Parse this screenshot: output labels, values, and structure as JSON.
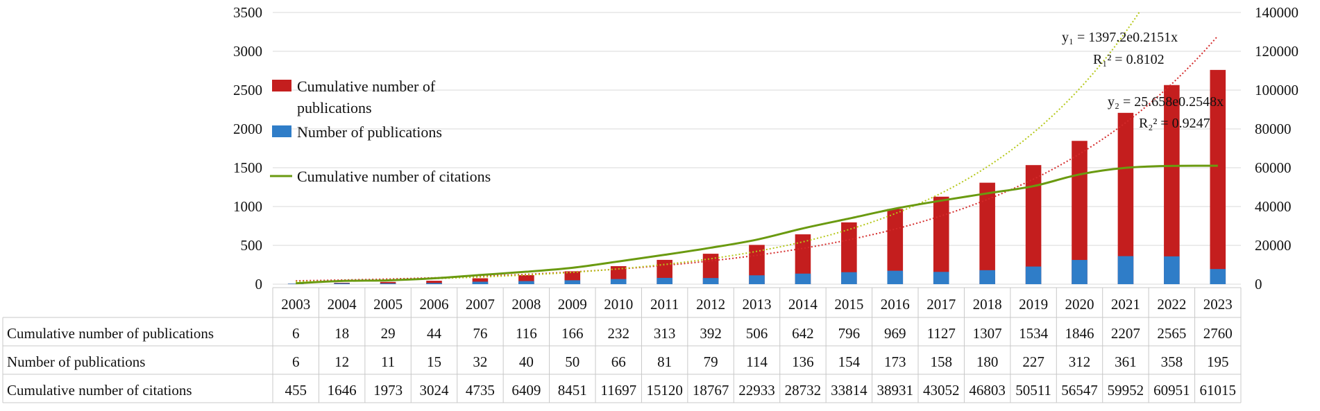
{
  "chart_data": {
    "type": "bar",
    "categories": [
      "2003",
      "2004",
      "2005",
      "2006",
      "2007",
      "2008",
      "2009",
      "2010",
      "2011",
      "2012",
      "2013",
      "2014",
      "2015",
      "2016",
      "2017",
      "2018",
      "2019",
      "2020",
      "2021",
      "2022",
      "2023"
    ],
    "series": [
      {
        "name": "Cumulative number of publications",
        "axis": "left",
        "kind": "bar",
        "color": "#c41e1e",
        "values": [
          6,
          18,
          29,
          44,
          76,
          116,
          166,
          232,
          313,
          392,
          506,
          642,
          796,
          969,
          1127,
          1307,
          1534,
          1846,
          2207,
          2565,
          2760
        ]
      },
      {
        "name": "Number of  publications",
        "axis": "left",
        "kind": "bar",
        "color": "#2f7dc8",
        "values": [
          6,
          12,
          11,
          15,
          32,
          40,
          50,
          66,
          81,
          79,
          114,
          136,
          154,
          173,
          158,
          180,
          227,
          312,
          361,
          358,
          195
        ]
      },
      {
        "name": "Cumulative number of citations",
        "axis": "right",
        "kind": "line",
        "color": "#6a9a10",
        "values": [
          455,
          1646,
          1973,
          3024,
          4735,
          6409,
          8451,
          11697,
          15120,
          18767,
          22933,
          28732,
          33814,
          38931,
          43052,
          46803,
          50511,
          56547,
          59952,
          60951,
          61015
        ]
      }
    ],
    "left_axis": {
      "min": 0,
      "max": 3500,
      "ticks": [
        "0",
        "500",
        "1000",
        "1500",
        "2000",
        "2500",
        "3000",
        "3500"
      ]
    },
    "right_axis": {
      "min": 0,
      "max": 140000,
      "ticks": [
        "0",
        "20000",
        "40000",
        "60000",
        "80000",
        "100000",
        "120000",
        "140000"
      ]
    },
    "legend": {
      "placement": "top-left",
      "entries": [
        {
          "line1": "Cumulative number of",
          "line2": "publications",
          "marker": "bar",
          "color": "#c41e1e"
        },
        {
          "line1": "Number of  publications",
          "marker": "bar",
          "color": "#2f7dc8"
        },
        {
          "line1": "Cumulative number of citations",
          "marker": "line",
          "color": "#6a9a10"
        }
      ]
    },
    "trendlines": [
      {
        "type": "exponential",
        "color": "#d42a2a",
        "a": 1397.2,
        "b": 0.2151,
        "axis": "right",
        "equation": "y₁ = 1397.2e0.2151x",
        "r2": "R₁² = 0.8102"
      },
      {
        "type": "exponential",
        "color": "#b5c81a",
        "a": 25.658,
        "b": 0.2548,
        "axis": "left",
        "equation": "y₂ = 25.658e0.2548x",
        "r2": "R₂² = 0.9247"
      }
    ],
    "table": {
      "row_labels": [
        "Cumulative number of publications",
        "Number of  publications",
        "Cumulative number of citations"
      ]
    },
    "grid": true
  }
}
